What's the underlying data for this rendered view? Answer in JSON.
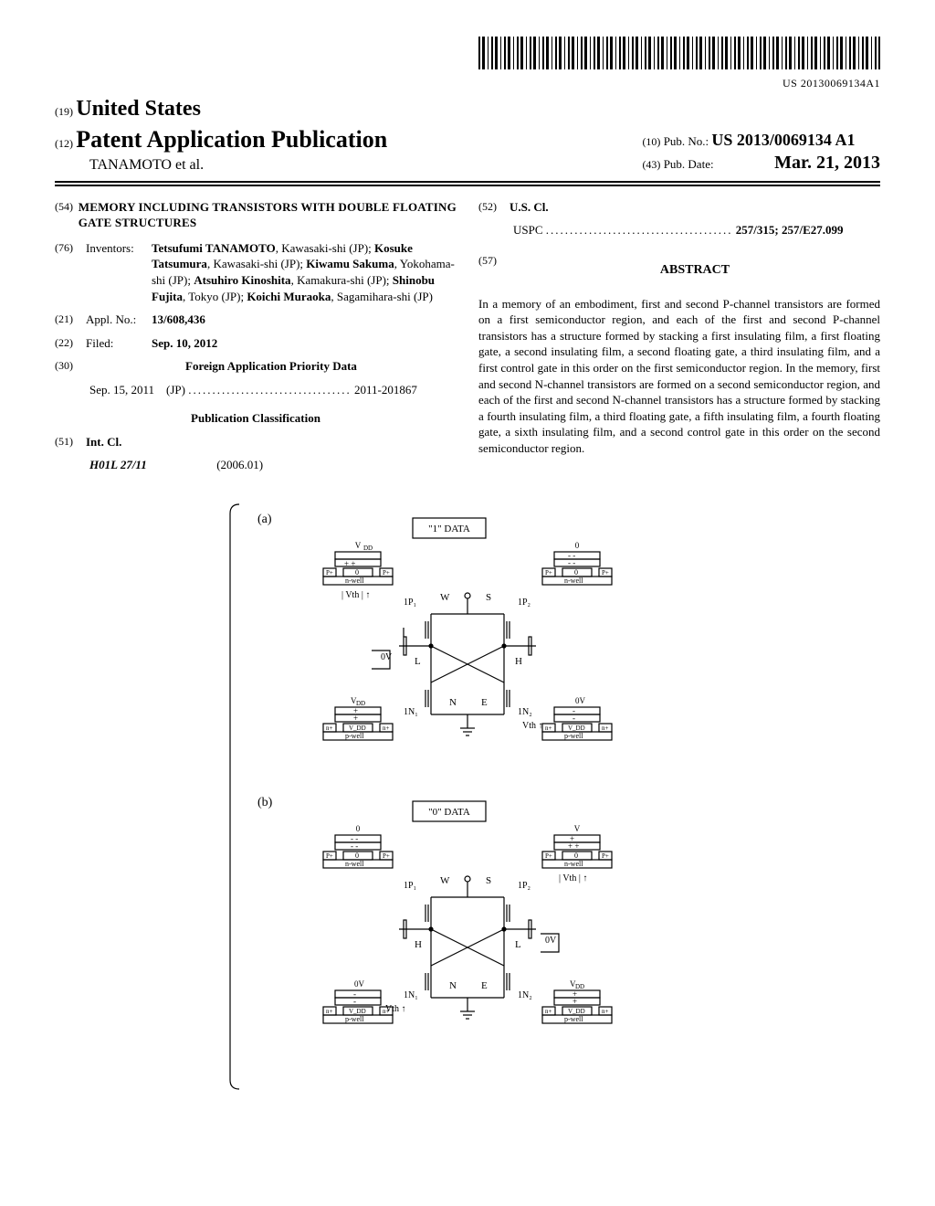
{
  "barcode_number": "US 20130069134A1",
  "header": {
    "country_inid": "(19)",
    "country": "United States",
    "doc_inid": "(12)",
    "doc_type": "Patent Application Publication",
    "authors_line": "TANAMOTO et al.",
    "pubno_inid": "(10)",
    "pubno_label": "Pub. No.:",
    "pubno": "US 2013/0069134 A1",
    "pubdate_inid": "(43)",
    "pubdate_label": "Pub. Date:",
    "pubdate": "Mar. 21, 2013"
  },
  "title": {
    "inid": "(54)",
    "text": "MEMORY INCLUDING TRANSISTORS WITH DOUBLE FLOATING GATE STRUCTURES"
  },
  "inventors": {
    "inid": "(76)",
    "label": "Inventors:",
    "list": [
      {
        "name": "Tetsufumi TANAMOTO",
        "loc": "Kawasaki-shi (JP)"
      },
      {
        "name": "Kosuke Tatsumura",
        "loc": "Kawasaki-shi (JP)"
      },
      {
        "name": "Kiwamu Sakuma",
        "loc": "Yokohama-shi (JP)"
      },
      {
        "name": "Atsuhiro Kinoshita",
        "loc": "Kamakura-shi (JP)"
      },
      {
        "name": "Shinobu Fujita",
        "loc": "Tokyo (JP)"
      },
      {
        "name": "Koichi Muraoka",
        "loc": "Sagamihara-shi (JP)"
      }
    ]
  },
  "appl": {
    "inid": "(21)",
    "label": "Appl. No.:",
    "value": "13/608,436"
  },
  "filed": {
    "inid": "(22)",
    "label": "Filed:",
    "value": "Sep. 10, 2012"
  },
  "foreign_priority": {
    "inid": "(30)",
    "heading": "Foreign Application Priority Data",
    "date": "Sep. 15, 2011",
    "country": "(JP)",
    "number": "2011-201867"
  },
  "pub_class": {
    "heading": "Publication Classification"
  },
  "intcl": {
    "inid": "(51)",
    "label": "Int. Cl.",
    "code": "H01L 27/11",
    "edition": "(2006.01)"
  },
  "uscl": {
    "inid": "(52)",
    "label": "U.S. Cl.",
    "scheme": "USPC",
    "codes": "257/315; 257/E27.099"
  },
  "abstract": {
    "inid": "(57)",
    "heading": "ABSTRACT",
    "text": "In a memory of an embodiment, first and second P-channel transistors are formed on a first semiconductor region, and each of the first and second P-channel transistors has a structure formed by stacking a first insulating film, a first floating gate, a second insulating film, a second floating gate, a third insulating film, and a first control gate in this order on the first semiconductor region. In the memory, first and second N-channel transistors are formed on a second semiconductor region, and each of the first and second N-channel transistors has a structure formed by stacking a fourth insulating film, a third floating gate, a fifth insulating film, a fourth floating gate, a sixth insulating film, and a second control gate in this order on the second semiconductor region."
  },
  "figure": {
    "panel_a_label": "(a)",
    "panel_b_label": "(b)",
    "data1_label": "\"1\" DATA",
    "data0_label": "\"0\" DATA",
    "labels": {
      "vdd": "V_DD",
      "zero": "0",
      "ov": "0V",
      "nwell": "n-well",
      "pwell": "p-well",
      "pplus": "P+",
      "nplus": "n+",
      "vth_up": "Vth ↑",
      "vth_down": "| Vth | ↑",
      "W": "W",
      "S": "S",
      "N": "N",
      "E": "E",
      "L": "L",
      "H": "H",
      "p1": "1P₁",
      "p2": "1P₂",
      "n1": "1N₁",
      "n2": "1N₂"
    },
    "colors": {
      "stroke": "#000000",
      "bg": "#ffffff"
    }
  }
}
